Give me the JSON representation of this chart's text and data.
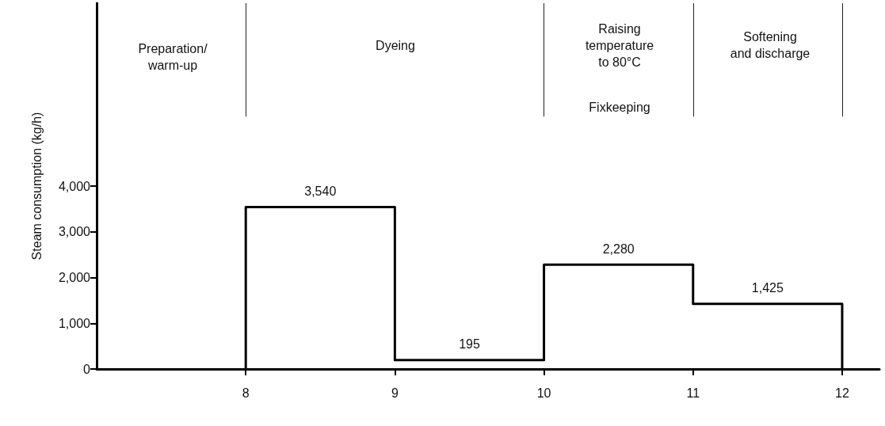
{
  "chart_data": {
    "type": "step",
    "ylabel": "Steam consumption (kg/h)",
    "x": [
      8,
      8,
      8.5,
      9.5,
      10.5,
      11.5,
      12,
      12
    ],
    "values": [
      0,
      3540,
      3540,
      195,
      2280,
      1425,
      1425,
      0
    ],
    "value_labels": [
      null,
      null,
      "3,540",
      "195",
      "2,280",
      "1,425",
      null,
      null
    ],
    "color": "#000000",
    "xlim": [
      7,
      12.25
    ],
    "xticks": [
      8,
      9,
      10,
      11,
      12
    ],
    "ylim": [
      0,
      8000
    ],
    "yticks": [
      0,
      {
        "value": 1000,
        "label": "1,000"
      },
      {
        "value": 2000,
        "label": "2,000"
      },
      {
        "value": 3000,
        "label": "3,000"
      },
      {
        "value": 4000,
        "label": "4,000"
      }
    ],
    "grid": false,
    "marker": "none",
    "line_style": "solid",
    "ref_lines": [
      {
        "axis": "x",
        "value": 8,
        "label": null
      },
      {
        "axis": "x",
        "value": 10,
        "label": null
      },
      {
        "axis": "x",
        "value": 11,
        "label": null
      },
      {
        "axis": "x",
        "value": 12,
        "label": null
      }
    ],
    "annotations": [
      "Preparation/\nwarm-up",
      "Dyeing",
      "Raising\ntemperature\nto 80°C",
      "Fixkeeping",
      "Softening\nand discharge"
    ]
  }
}
